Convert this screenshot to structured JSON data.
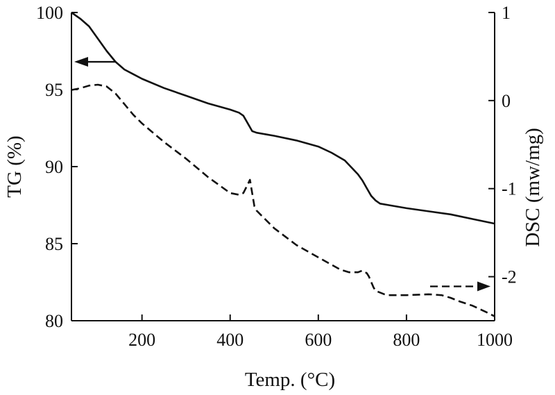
{
  "chart_data": {
    "type": "line",
    "xlabel": "Temp. (°C)",
    "ylabel_left": "TG (%)",
    "ylabel_right": "DSC (mw/mg)",
    "xlim": [
      40,
      1000
    ],
    "ylim_left": [
      80,
      100
    ],
    "ylim_right": [
      -2.5,
      1
    ],
    "x_ticks": [
      200,
      400,
      600,
      800,
      1000
    ],
    "y_left_ticks": [
      80,
      85,
      90,
      95,
      100
    ],
    "y_right_ticks": [
      -2,
      -1,
      0,
      1
    ],
    "x_tick_labels": [
      "200",
      "400",
      "600",
      "800",
      "1000"
    ],
    "y_left_tick_labels": [
      "80",
      "85",
      "90",
      "95",
      "100"
    ],
    "y_right_tick_labels": [
      "-2",
      "-1",
      "0",
      "1"
    ],
    "colors": {
      "line": "#111111",
      "axis": "#111111"
    },
    "series": [
      {
        "name": "TG",
        "axis": "left",
        "style": "solid",
        "x": [
          40,
          60,
          80,
          100,
          120,
          140,
          160,
          180,
          200,
          250,
          300,
          350,
          400,
          420,
          430,
          440,
          450,
          460,
          500,
          550,
          600,
          630,
          660,
          690,
          700,
          710,
          720,
          730,
          740,
          760,
          800,
          850,
          900,
          950,
          1000
        ],
        "y": [
          100,
          99.6,
          99.1,
          98.3,
          97.5,
          96.8,
          96.3,
          96.0,
          95.7,
          95.1,
          94.6,
          94.1,
          93.7,
          93.5,
          93.3,
          92.8,
          92.3,
          92.2,
          92.0,
          91.7,
          91.3,
          90.9,
          90.4,
          89.5,
          89.1,
          88.6,
          88.1,
          87.8,
          87.6,
          87.5,
          87.3,
          87.1,
          86.9,
          86.6,
          86.3
        ]
      },
      {
        "name": "DSC",
        "axis": "right",
        "style": "dashed",
        "x": [
          40,
          60,
          80,
          100,
          120,
          140,
          160,
          180,
          200,
          250,
          300,
          350,
          400,
          410,
          420,
          430,
          440,
          445,
          450,
          455,
          460,
          470,
          500,
          550,
          600,
          650,
          670,
          690,
          700,
          710,
          715,
          720,
          725,
          730,
          740,
          750,
          760,
          780,
          800,
          850,
          880,
          900,
          920,
          950,
          980,
          1000
        ],
        "y": [
          0.12,
          0.14,
          0.17,
          0.18,
          0.16,
          0.08,
          -0.04,
          -0.16,
          -0.26,
          -0.47,
          -0.66,
          -0.87,
          -1.05,
          -1.06,
          -1.07,
          -1.05,
          -0.95,
          -0.9,
          -1.05,
          -1.2,
          -1.25,
          -1.3,
          -1.45,
          -1.64,
          -1.78,
          -1.92,
          -1.95,
          -1.95,
          -1.93,
          -1.96,
          -2.0,
          -2.06,
          -2.12,
          -2.16,
          -2.18,
          -2.2,
          -2.21,
          -2.21,
          -2.21,
          -2.2,
          -2.21,
          -2.24,
          -2.28,
          -2.33,
          -2.4,
          -2.45
        ]
      }
    ]
  }
}
